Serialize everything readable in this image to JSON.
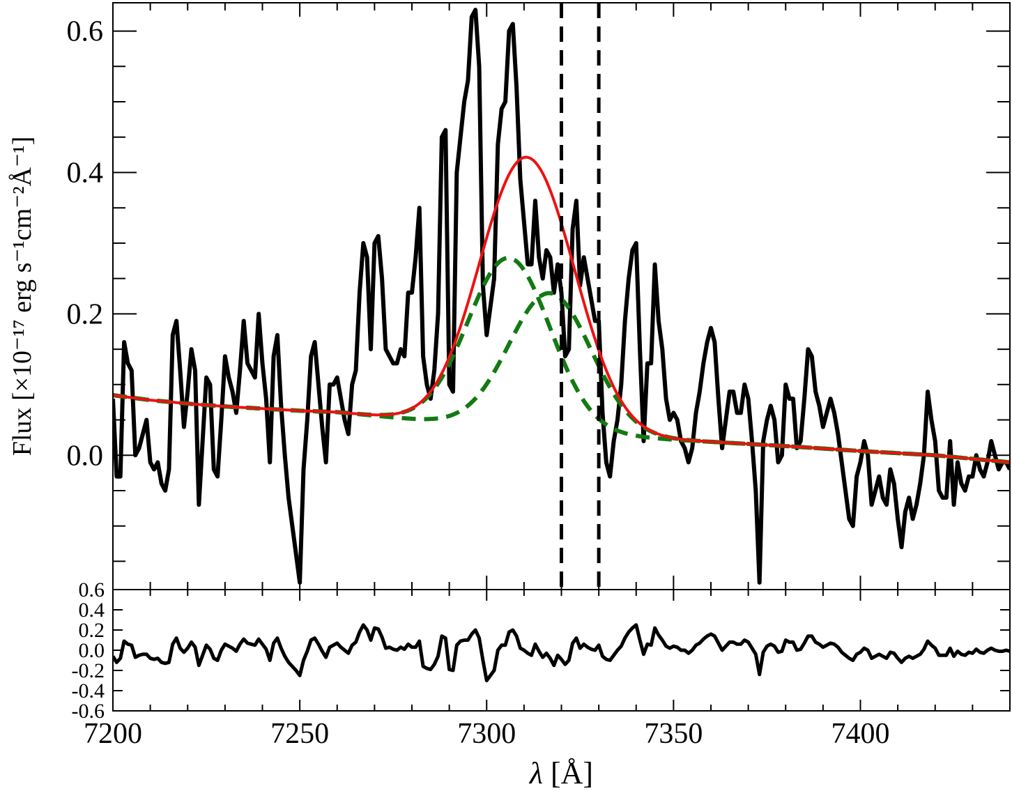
{
  "chart_data": {
    "type": "line",
    "x_unit_axis": {
      "label_symbol": "λ",
      "label_rest": " [Å]",
      "xlim": [
        7200,
        7440
      ],
      "ticks": [
        {
          "value": 7200,
          "label": "7200"
        },
        {
          "value": 7250,
          "label": "7250"
        },
        {
          "value": 7300,
          "label": "7300"
        },
        {
          "value": 7350,
          "label": "7350"
        },
        {
          "value": 7400,
          "label": "7400"
        }
      ],
      "minor_step": 10
    },
    "top_panel": {
      "ylabel": "Flux [×10⁻¹⁷ erg s⁻¹cm⁻²Å⁻¹]",
      "ylim": [
        -0.19,
        0.64
      ],
      "yticks": [
        {
          "value": 0.0,
          "label": "0.0"
        },
        {
          "value": 0.2,
          "label": "0.2"
        },
        {
          "value": 0.4,
          "label": "0.4"
        },
        {
          "value": 0.6,
          "label": "0.6"
        }
      ],
      "minor_step": 0.05,
      "vlines": [
        7320,
        7330
      ],
      "series": [
        {
          "role": "observed spectrum",
          "color": "#000000",
          "style": "solid",
          "x": [
            7200,
            7201,
            7202,
            7203,
            7204,
            7205,
            7206,
            7207,
            7208,
            7209,
            7210,
            7211,
            7212,
            7213,
            7214,
            7215,
            7216,
            7217,
            7218,
            7219,
            7220,
            7221,
            7222,
            7223,
            7224,
            7225,
            7226,
            7227,
            7228,
            7229,
            7230,
            7231,
            7232,
            7233,
            7234,
            7235,
            7236,
            7237,
            7238,
            7239,
            7240,
            7241,
            7242,
            7243,
            7244,
            7245,
            7246,
            7247,
            7248,
            7249,
            7250,
            7251,
            7252,
            7253,
            7254,
            7255,
            7256,
            7257,
            7258,
            7259,
            7260,
            7261,
            7262,
            7263,
            7264,
            7265,
            7266,
            7267,
            7268,
            7269,
            7270,
            7271,
            7272,
            7273,
            7274,
            7275,
            7276,
            7277,
            7278,
            7279,
            7280,
            7281,
            7282,
            7283,
            7284,
            7285,
            7286,
            7287,
            7288,
            7289,
            7290,
            7291,
            7292,
            7293,
            7294,
            7295,
            7296,
            7297,
            7298,
            7299,
            7300,
            7301,
            7302,
            7303,
            7304,
            7305,
            7306,
            7307,
            7308,
            7309,
            7310,
            7311,
            7312,
            7313,
            7314,
            7315,
            7316,
            7317,
            7318,
            7319,
            7320,
            7321,
            7322,
            7323,
            7324,
            7325,
            7326,
            7327,
            7328,
            7329,
            7330,
            7331,
            7332,
            7333,
            7334,
            7335,
            7336,
            7337,
            7338,
            7339,
            7340,
            7341,
            7342,
            7343,
            7344,
            7345,
            7346,
            7347,
            7348,
            7349,
            7350,
            7351,
            7352,
            7353,
            7354,
            7355,
            7356,
            7357,
            7358,
            7359,
            7360,
            7361,
            7362,
            7363,
            7364,
            7365,
            7366,
            7367,
            7368,
            7369,
            7370,
            7371,
            7372,
            7373,
            7374,
            7375,
            7376,
            7377,
            7378,
            7379,
            7380,
            7381,
            7382,
            7383,
            7384,
            7385,
            7386,
            7387,
            7388,
            7389,
            7390,
            7391,
            7392,
            7393,
            7394,
            7395,
            7396,
            7397,
            7398,
            7399,
            7400,
            7401,
            7402,
            7403,
            7404,
            7405,
            7406,
            7407,
            7408,
            7409,
            7410,
            7411,
            7412,
            7413,
            7414,
            7415,
            7416,
            7417,
            7418,
            7419,
            7420,
            7421,
            7422,
            7423,
            7424,
            7425,
            7426,
            7427,
            7428,
            7429,
            7430,
            7431,
            7432,
            7433,
            7434,
            7435,
            7436,
            7437,
            7438,
            7439,
            7440
          ],
          "y": [
            0.08,
            -0.03,
            -0.03,
            0.16,
            0.13,
            0.12,
            0.0,
            0.01,
            0.03,
            0.05,
            -0.01,
            -0.02,
            -0.01,
            -0.04,
            -0.05,
            -0.02,
            0.17,
            0.19,
            0.12,
            0.04,
            0.09,
            0.15,
            0.12,
            -0.07,
            0.02,
            0.11,
            0.1,
            -0.02,
            -0.03,
            0.05,
            0.14,
            0.11,
            0.09,
            0.06,
            0.12,
            0.19,
            0.13,
            0.12,
            0.11,
            0.2,
            0.13,
            0.08,
            -0.01,
            0.14,
            0.17,
            0.07,
            0.0,
            -0.06,
            -0.1,
            -0.14,
            -0.18,
            -0.02,
            0.05,
            0.14,
            0.16,
            0.1,
            0.04,
            -0.01,
            0.1,
            0.1,
            0.11,
            0.08,
            0.05,
            0.03,
            0.1,
            0.12,
            0.23,
            0.3,
            0.28,
            0.15,
            0.3,
            0.31,
            0.25,
            0.15,
            0.14,
            0.13,
            0.13,
            0.15,
            0.14,
            0.23,
            0.23,
            0.28,
            0.35,
            0.14,
            0.1,
            0.08,
            0.12,
            0.2,
            0.45,
            0.46,
            0.1,
            0.09,
            0.4,
            0.45,
            0.5,
            0.53,
            0.62,
            0.63,
            0.55,
            0.24,
            0.17,
            0.21,
            0.25,
            0.44,
            0.49,
            0.5,
            0.6,
            0.61,
            0.52,
            0.39,
            0.33,
            0.27,
            0.27,
            0.36,
            0.28,
            0.25,
            0.29,
            0.28,
            0.23,
            0.27,
            0.23,
            0.14,
            0.15,
            0.32,
            0.36,
            0.24,
            0.28,
            0.25,
            0.22,
            0.19,
            0.19,
            0.06,
            -0.01,
            -0.03,
            0.02,
            0.05,
            0.1,
            0.19,
            0.25,
            0.29,
            0.3,
            0.15,
            0.02,
            0.13,
            0.13,
            0.27,
            0.19,
            0.15,
            0.08,
            0.05,
            0.06,
            0.05,
            0.02,
            0.01,
            -0.01,
            0.01,
            0.06,
            0.09,
            0.13,
            0.16,
            0.18,
            0.16,
            0.08,
            0.01,
            0.05,
            0.09,
            0.09,
            0.06,
            0.06,
            0.1,
            0.08,
            0.02,
            -0.05,
            -0.18,
            0.02,
            0.05,
            0.07,
            0.05,
            -0.01,
            0.0,
            0.1,
            0.08,
            0.08,
            0.01,
            0.02,
            0.08,
            0.15,
            0.14,
            0.09,
            0.07,
            0.04,
            0.06,
            0.08,
            0.06,
            0.03,
            -0.01,
            -0.05,
            -0.09,
            -0.1,
            -0.03,
            -0.01,
            0.02,
            0.0,
            -0.07,
            -0.05,
            -0.03,
            -0.06,
            -0.07,
            -0.02,
            -0.04,
            -0.09,
            -0.13,
            -0.08,
            -0.06,
            -0.09,
            -0.07,
            -0.04,
            0.0,
            0.09,
            0.05,
            0.02,
            -0.05,
            -0.06,
            -0.06,
            0.02,
            -0.07,
            -0.01,
            -0.04,
            -0.05,
            -0.03,
            -0.03,
            0.0,
            -0.02,
            -0.03,
            -0.01,
            0.02,
            0.0,
            -0.02,
            -0.01,
            -0.01,
            -0.02
          ],
          "width": 6
        },
        {
          "role": "total fit",
          "color": "#ee1111",
          "style": "solid",
          "width": 4,
          "model": {
            "continuum_anchors": [
              [
                7200,
                0.085
              ],
              [
                7210,
                0.078
              ],
              [
                7220,
                0.073
              ],
              [
                7230,
                0.069
              ],
              [
                7240,
                0.066
              ],
              [
                7250,
                0.063
              ],
              [
                7260,
                0.061
              ],
              [
                7270,
                0.056
              ],
              [
                7290,
                0.046
              ],
              [
                7320,
                0.033
              ],
              [
                7350,
                0.022
              ],
              [
                7360,
                0.019
              ],
              [
                7380,
                0.013
              ],
              [
                7400,
                0.006
              ],
              [
                7420,
                0.0
              ],
              [
                7440,
                -0.01
              ]
            ],
            "gaussians": [
              {
                "center": 7306,
                "sigma": 11,
                "amp": 0.24
              },
              {
                "center": 7317,
                "sigma": 11,
                "amp": 0.195
              }
            ]
          }
        },
        {
          "role": "component 1",
          "color": "#127a12",
          "style": "dashed",
          "width": 6,
          "model": {
            "gaussian_index": 0
          }
        },
        {
          "role": "component 2",
          "color": "#127a12",
          "style": "dashed",
          "width": 6,
          "model": {
            "gaussian_index": 1
          }
        }
      ]
    },
    "bottom_panel": {
      "ylim": [
        -0.6,
        0.6
      ],
      "yticks": [
        {
          "value": 0.6,
          "label": "0.6"
        },
        {
          "value": 0.4,
          "label": "0.4"
        },
        {
          "value": 0.2,
          "label": "0.2"
        },
        {
          "value": 0.0,
          "label": "0.0"
        },
        {
          "value": -0.2,
          "label": "-0.2"
        },
        {
          "value": -0.4,
          "label": "-0.4"
        },
        {
          "value": -0.6,
          "label": "-0.6"
        }
      ],
      "series": [
        {
          "role": "residuals",
          "color": "#000000",
          "style": "solid",
          "width": 5,
          "y": [
            -0.06,
            -0.12,
            -0.08,
            0.09,
            0.06,
            0.05,
            -0.07,
            -0.05,
            -0.04,
            -0.04,
            -0.08,
            -0.09,
            -0.08,
            -0.12,
            -0.13,
            -0.12,
            0.06,
            0.12,
            0.02,
            -0.02,
            0.02,
            0.08,
            0.03,
            -0.15,
            -0.05,
            0.05,
            0.01,
            -0.08,
            -0.1,
            0.0,
            0.06,
            0.04,
            0.02,
            -0.01,
            0.06,
            0.11,
            0.07,
            0.06,
            0.05,
            0.11,
            0.06,
            0.01,
            -0.1,
            0.07,
            0.12,
            0.02,
            -0.06,
            -0.12,
            -0.16,
            -0.2,
            -0.25,
            -0.1,
            -0.01,
            0.1,
            0.12,
            0.06,
            -0.01,
            -0.07,
            0.03,
            0.05,
            0.07,
            0.03,
            0.0,
            -0.03,
            0.05,
            0.08,
            0.18,
            0.25,
            0.2,
            0.1,
            0.22,
            0.21,
            0.13,
            0.02,
            0.03,
            0.01,
            0.0,
            0.03,
            0.01,
            0.06,
            0.03,
            0.03,
            0.09,
            -0.16,
            -0.18,
            -0.19,
            -0.14,
            -0.06,
            0.14,
            0.12,
            -0.19,
            -0.2,
            0.05,
            0.09,
            0.1,
            0.1,
            0.16,
            0.2,
            0.12,
            -0.1,
            -0.3,
            -0.25,
            -0.2,
            0.0,
            0.05,
            0.05,
            0.18,
            0.2,
            0.14,
            0.02,
            0.0,
            -0.03,
            -0.05,
            0.06,
            -0.01,
            -0.07,
            -0.03,
            -0.08,
            -0.15,
            -0.05,
            -0.09,
            -0.14,
            -0.1,
            0.07,
            0.12,
            0.02,
            0.06,
            0.03,
            0.01,
            0.0,
            0.05,
            -0.06,
            -0.09,
            -0.1,
            -0.05,
            0.0,
            0.04,
            0.12,
            0.18,
            0.22,
            0.25,
            0.1,
            -0.04,
            0.06,
            0.05,
            0.22,
            0.15,
            0.1,
            0.04,
            0.02,
            0.04,
            0.03,
            0.0,
            0.0,
            -0.03,
            0.0,
            0.05,
            0.07,
            0.11,
            0.14,
            0.16,
            0.14,
            0.07,
            0.0,
            0.04,
            0.08,
            0.08,
            0.06,
            0.06,
            0.1,
            0.08,
            0.02,
            -0.04,
            -0.24,
            -0.02,
            0.04,
            0.06,
            0.04,
            -0.02,
            -0.01,
            0.1,
            0.08,
            0.08,
            0.0,
            0.01,
            0.07,
            0.14,
            0.14,
            0.08,
            0.06,
            0.03,
            0.05,
            0.07,
            0.06,
            0.03,
            -0.02,
            -0.05,
            -0.08,
            -0.1,
            -0.04,
            -0.02,
            0.02,
            0.0,
            -0.08,
            -0.06,
            -0.04,
            -0.06,
            -0.08,
            -0.02,
            -0.03,
            -0.08,
            -0.12,
            -0.08,
            -0.06,
            -0.08,
            -0.06,
            -0.04,
            0.01,
            0.09,
            0.05,
            0.02,
            -0.05,
            -0.05,
            -0.05,
            0.02,
            -0.06,
            -0.01,
            -0.04,
            -0.05,
            -0.02,
            -0.03,
            0.01,
            -0.02,
            -0.03,
            0.0,
            0.02,
            0.0,
            -0.01,
            -0.01,
            0.0,
            -0.01
          ]
        }
      ]
    }
  }
}
